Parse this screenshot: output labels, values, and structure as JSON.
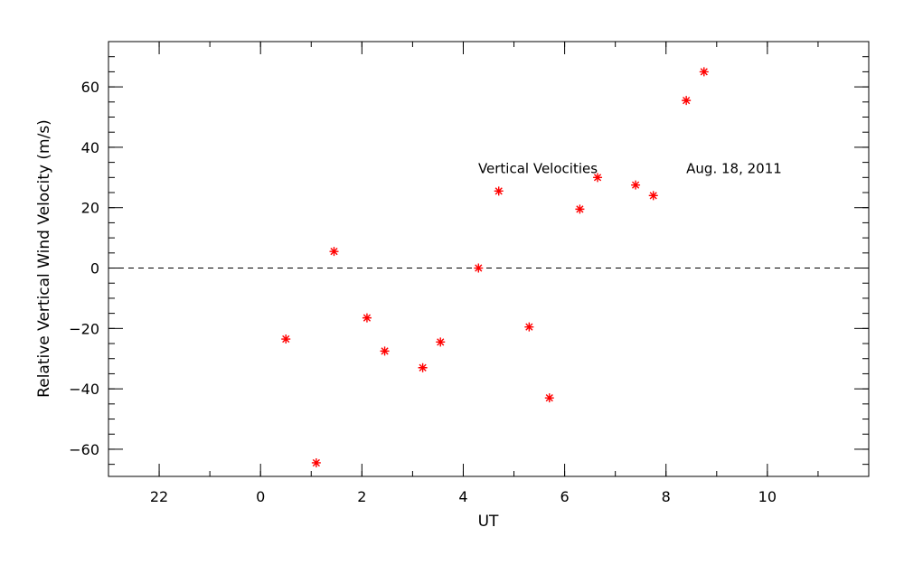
{
  "chart_data": {
    "type": "scatter",
    "xlabel": "UT",
    "ylabel": "Relative Vertical Wind Velocity (m/s)",
    "xlim": [
      -3,
      12
    ],
    "ylim": [
      -69,
      75
    ],
    "x_major_ticks": [
      {
        "value": -2,
        "label": "22"
      },
      {
        "value": 0,
        "label": "0"
      },
      {
        "value": 2,
        "label": "2"
      },
      {
        "value": 4,
        "label": "4"
      },
      {
        "value": 6,
        "label": "6"
      },
      {
        "value": 8,
        "label": "8"
      },
      {
        "value": 10,
        "label": "10"
      }
    ],
    "x_minor_step": 1,
    "y_major_ticks": [
      {
        "value": -60,
        "label": "−60"
      },
      {
        "value": -40,
        "label": "−40"
      },
      {
        "value": -20,
        "label": "−20"
      },
      {
        "value": 0,
        "label": "0"
      },
      {
        "value": 20,
        "label": "20"
      },
      {
        "value": 40,
        "label": "40"
      },
      {
        "value": 60,
        "label": "60"
      }
    ],
    "y_minor_step": 5,
    "reference_line": {
      "y": 0,
      "style": "dashed"
    },
    "marker": "asterisk",
    "marker_color": "#ff0000",
    "series": [
      {
        "points": [
          [
            0.5,
            -23.5
          ],
          [
            1.1,
            -64.5
          ],
          [
            1.45,
            5.5
          ],
          [
            2.1,
            -16.5
          ],
          [
            2.45,
            -27.5
          ],
          [
            3.2,
            -33.0
          ],
          [
            3.55,
            -24.5
          ],
          [
            4.3,
            0.0
          ],
          [
            4.7,
            25.5
          ],
          [
            5.3,
            -19.5
          ],
          [
            5.7,
            -43.0
          ],
          [
            6.3,
            19.5
          ],
          [
            6.65,
            30.0
          ],
          [
            7.4,
            27.5
          ],
          [
            7.75,
            24.0
          ],
          [
            8.4,
            55.5
          ],
          [
            8.75,
            65.0
          ]
        ]
      }
    ],
    "annotations": [
      {
        "text": "Vertical Velocities",
        "x": 6.65,
        "y": 31.5,
        "anchor": "end"
      },
      {
        "text": "Aug. 18, 2011",
        "x": 8.4,
        "y": 31.5,
        "anchor": "start"
      }
    ]
  }
}
